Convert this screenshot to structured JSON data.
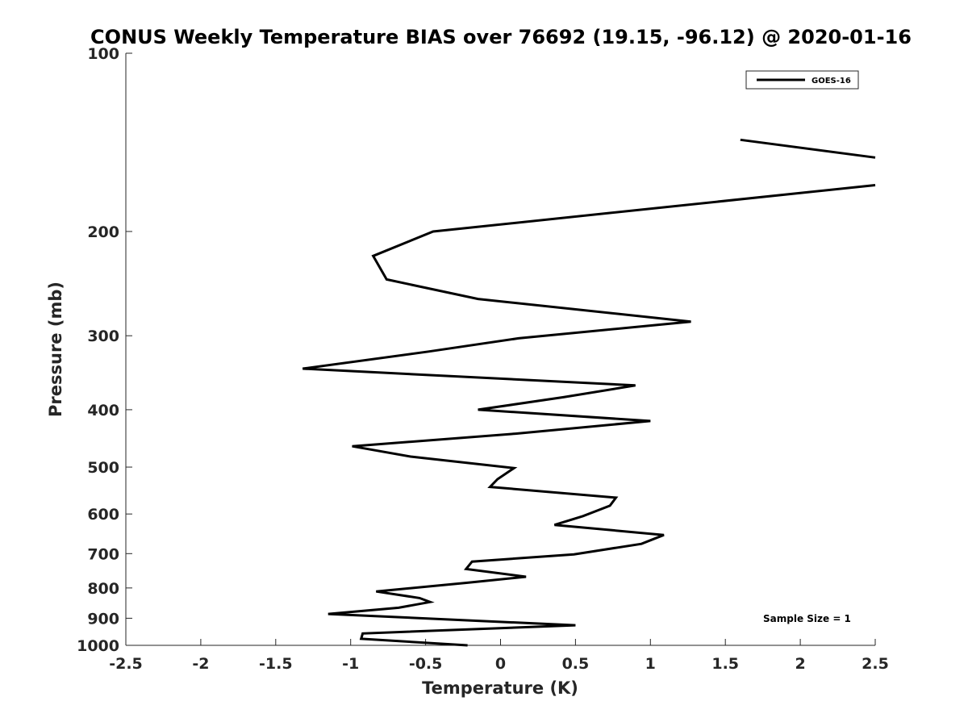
{
  "chart_data": {
    "type": "line",
    "title": "CONUS Weekly Temperature BIAS over 76692 (19.15, -96.12) @ 2020-01-16",
    "xlabel": "Temperature (K)",
    "ylabel": "Pressure (mb)",
    "xlim": [
      -2.5,
      2.5
    ],
    "ylim": [
      1000,
      100
    ],
    "y_scale": "log",
    "y_reversed": true,
    "grid": false,
    "x_ticks": [
      -2.5,
      -2,
      -1.5,
      -1,
      -0.5,
      0,
      0.5,
      1,
      1.5,
      2,
      2.5
    ],
    "x_tick_labels": [
      "-2.5",
      "-2",
      "-1.5",
      "-1",
      "-0.5",
      "0",
      "0.5",
      "1",
      "1.5",
      "2",
      "2.5"
    ],
    "y_ticks": [
      100,
      200,
      300,
      400,
      500,
      600,
      700,
      800,
      900,
      1000
    ],
    "y_tick_labels": [
      "100",
      "200",
      "300",
      "400",
      "500",
      "600",
      "700",
      "800",
      "900",
      "1000"
    ],
    "legend": {
      "placement": "top-right",
      "entries": [
        "GOES-16"
      ]
    },
    "annotation": "Sample Size = 1",
    "series": [
      {
        "name": "GOES-16",
        "color": "#000000",
        "segments": [
          [
            {
              "x": 1.6,
              "y": 140
            },
            {
              "x": 2.5,
              "y": 150
            }
          ],
          [
            {
              "x": 2.5,
              "y": 167
            },
            {
              "x": -0.45,
              "y": 200
            },
            {
              "x": -0.85,
              "y": 220
            },
            {
              "x": -0.76,
              "y": 241
            },
            {
              "x": -0.15,
              "y": 260
            },
            {
              "x": 1.27,
              "y": 284
            },
            {
              "x": 0.12,
              "y": 303
            },
            {
              "x": -0.48,
              "y": 319
            },
            {
              "x": -1.32,
              "y": 341
            },
            {
              "x": 0.9,
              "y": 364
            },
            {
              "x": 0.42,
              "y": 381
            },
            {
              "x": -0.15,
              "y": 400
            },
            {
              "x": 1.0,
              "y": 418
            },
            {
              "x": 0.1,
              "y": 439
            },
            {
              "x": -0.99,
              "y": 461
            },
            {
              "x": -0.6,
              "y": 480
            },
            {
              "x": 0.09,
              "y": 502
            },
            {
              "x": -0.02,
              "y": 524
            },
            {
              "x": -0.07,
              "y": 540
            },
            {
              "x": 0.77,
              "y": 563
            },
            {
              "x": 0.73,
              "y": 581
            },
            {
              "x": 0.55,
              "y": 605
            },
            {
              "x": 0.36,
              "y": 626
            },
            {
              "x": 1.09,
              "y": 651
            },
            {
              "x": 0.94,
              "y": 674
            },
            {
              "x": 0.49,
              "y": 702
            },
            {
              "x": -0.19,
              "y": 722
            },
            {
              "x": -0.23,
              "y": 743
            },
            {
              "x": 0.17,
              "y": 766
            },
            {
              "x": -0.22,
              "y": 784
            },
            {
              "x": -0.83,
              "y": 811
            },
            {
              "x": -0.54,
              "y": 832
            },
            {
              "x": -0.47,
              "y": 845
            },
            {
              "x": -0.68,
              "y": 864
            },
            {
              "x": -1.15,
              "y": 885
            },
            {
              "x": 0.5,
              "y": 925
            },
            {
              "x": -0.92,
              "y": 955
            },
            {
              "x": -0.93,
              "y": 975
            },
            {
              "x": -0.22,
              "y": 1000
            }
          ]
        ]
      }
    ]
  }
}
